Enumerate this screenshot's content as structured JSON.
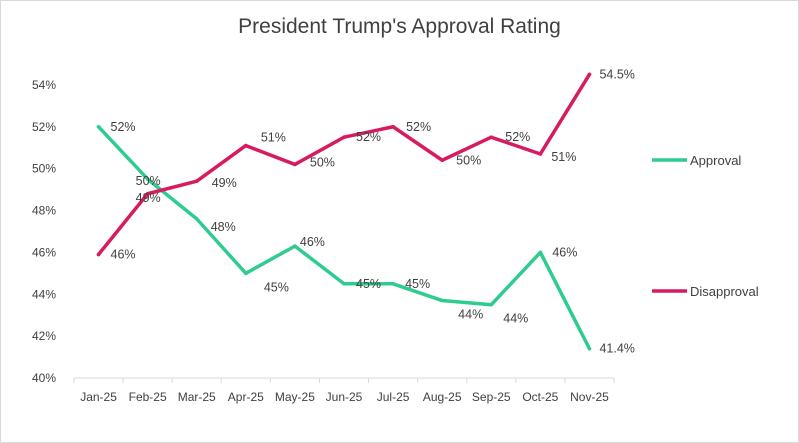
{
  "chart_data": {
    "type": "line",
    "title": "President Trump's Approval Rating",
    "categories": [
      "Jan-25",
      "Feb-25",
      "Mar-25",
      "Apr-25",
      "May-25",
      "Jun-25",
      "Jul-25",
      "Aug-25",
      "Sep-25",
      "Oct-25",
      "Nov-25"
    ],
    "series": [
      {
        "name": "Approval",
        "color": "#2ecc8f",
        "values": [
          52.0,
          49.5,
          47.6,
          45.0,
          46.3,
          44.5,
          44.5,
          43.7,
          43.5,
          46.0,
          41.4
        ],
        "labels": [
          "52%",
          "",
          "48%",
          "45%",
          "46%",
          "45%",
          "45%",
          "44%",
          "44%",
          "46%",
          "41.4%"
        ]
      },
      {
        "name": "Disapproval",
        "color": "#d81b60",
        "values": [
          45.9,
          48.8,
          49.4,
          51.1,
          50.2,
          51.5,
          52.0,
          50.4,
          51.5,
          50.7,
          54.5
        ],
        "labels": [
          "46%",
          "",
          "49%",
          "51%",
          "50%",
          "52%",
          "52%",
          "50%",
          "52%",
          "51%",
          "54.5%"
        ]
      }
    ],
    "crossing_labels": {
      "approval": "49%",
      "disapproval": "50%"
    },
    "y_ticks": [
      "40%",
      "42%",
      "44%",
      "46%",
      "48%",
      "50%",
      "52%",
      "54%"
    ],
    "ylim": [
      40,
      56
    ],
    "grid": false,
    "legend_position": "right"
  }
}
